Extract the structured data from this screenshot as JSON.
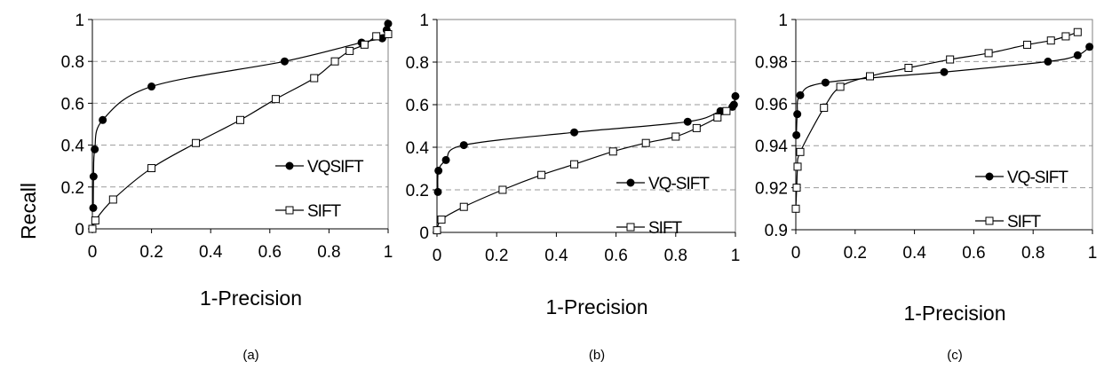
{
  "figure": {
    "ylabel": "Recall"
  },
  "chart_data": [
    {
      "type": "line",
      "caption": "(a)",
      "xlabel": "1-Precision",
      "ylabel": "Recall",
      "xlim": [
        0,
        1
      ],
      "ylim": [
        0,
        1
      ],
      "xticks": [
        "0",
        "0.2",
        "0.4",
        "0.6",
        "0.8",
        "1"
      ],
      "yticks": [
        "0",
        "0.2",
        "0.4",
        "0.6",
        "0.8",
        "1"
      ],
      "grid": "horizontal dashed",
      "legend_position": "lower-right",
      "series": [
        {
          "name": "VQSIFT",
          "marker": "filled-circle",
          "color": "#000000",
          "points": [
            [
              0.003,
              0.1
            ],
            [
              0.004,
              0.25
            ],
            [
              0.008,
              0.38
            ],
            [
              0.035,
              0.52
            ],
            [
              0.2,
              0.68
            ],
            [
              0.65,
              0.8
            ],
            [
              0.91,
              0.89
            ],
            [
              0.98,
              0.91
            ],
            [
              0.995,
              0.95
            ],
            [
              1.0,
              0.98
            ]
          ]
        },
        {
          "name": "SIFT",
          "marker": "open-square",
          "color": "#000000",
          "points": [
            [
              0.0,
              0.0
            ],
            [
              0.01,
              0.04
            ],
            [
              0.07,
              0.14
            ],
            [
              0.2,
              0.29
            ],
            [
              0.35,
              0.41
            ],
            [
              0.5,
              0.52
            ],
            [
              0.62,
              0.62
            ],
            [
              0.75,
              0.72
            ],
            [
              0.82,
              0.8
            ],
            [
              0.87,
              0.85
            ],
            [
              0.92,
              0.88
            ],
            [
              0.96,
              0.92
            ],
            [
              1.0,
              0.93
            ]
          ]
        }
      ]
    },
    {
      "type": "line",
      "caption": "(b)",
      "xlabel": "1-Precision",
      "ylabel": "",
      "xlim": [
        0,
        1
      ],
      "ylim": [
        0,
        1
      ],
      "xticks": [
        "0",
        "0.2",
        "0.4",
        "0.6",
        "0.8",
        "1"
      ],
      "yticks": [
        "0",
        "0.2",
        "0.4",
        "0.6",
        "0.8",
        "1"
      ],
      "grid": "horizontal dashed",
      "legend_position": "lower-right",
      "series": [
        {
          "name": "VQ-SIFT",
          "marker": "filled-circle",
          "color": "#000000",
          "points": [
            [
              0.003,
              0.19
            ],
            [
              0.005,
              0.29
            ],
            [
              0.03,
              0.34
            ],
            [
              0.09,
              0.41
            ],
            [
              0.46,
              0.47
            ],
            [
              0.84,
              0.52
            ],
            [
              0.95,
              0.57
            ],
            [
              0.99,
              0.59
            ],
            [
              0.995,
              0.6
            ],
            [
              1.0,
              0.64
            ]
          ]
        },
        {
          "name": "SIFT",
          "marker": "open-square",
          "color": "#000000",
          "points": [
            [
              0.0,
              0.01
            ],
            [
              0.015,
              0.06
            ],
            [
              0.09,
              0.12
            ],
            [
              0.22,
              0.2
            ],
            [
              0.35,
              0.27
            ],
            [
              0.46,
              0.32
            ],
            [
              0.59,
              0.38
            ],
            [
              0.7,
              0.42
            ],
            [
              0.8,
              0.45
            ],
            [
              0.87,
              0.49
            ],
            [
              0.94,
              0.54
            ],
            [
              0.97,
              0.57
            ]
          ]
        }
      ]
    },
    {
      "type": "line",
      "caption": "(c)",
      "xlabel": "1-Precision",
      "ylabel": "",
      "xlim": [
        0,
        1
      ],
      "ylim": [
        0.9,
        1
      ],
      "xticks": [
        "0",
        "0.2",
        "0.4",
        "0.6",
        "0.8",
        "1"
      ],
      "yticks": [
        "0.9",
        "0.92",
        "0.94",
        "0.96",
        "0.98",
        "1"
      ],
      "grid": "horizontal dashed",
      "legend_position": "lower-right",
      "series": [
        {
          "name": "VQ-SIFT",
          "marker": "filled-circle",
          "color": "#000000",
          "points": [
            [
              0.002,
              0.945
            ],
            [
              0.005,
              0.955
            ],
            [
              0.015,
              0.964
            ],
            [
              0.1,
              0.97
            ],
            [
              0.5,
              0.975
            ],
            [
              0.85,
              0.98
            ],
            [
              0.95,
              0.983
            ],
            [
              0.99,
              0.987
            ]
          ]
        },
        {
          "name": "SIFT",
          "marker": "open-square",
          "color": "#000000",
          "points": [
            [
              0.0,
              0.91
            ],
            [
              0.003,
              0.92
            ],
            [
              0.006,
              0.93
            ],
            [
              0.015,
              0.937
            ],
            [
              0.095,
              0.958
            ],
            [
              0.15,
              0.968
            ],
            [
              0.25,
              0.973
            ],
            [
              0.38,
              0.977
            ],
            [
              0.52,
              0.981
            ],
            [
              0.65,
              0.984
            ],
            [
              0.78,
              0.988
            ],
            [
              0.86,
              0.99
            ],
            [
              0.91,
              0.992
            ],
            [
              0.95,
              0.994
            ]
          ]
        }
      ]
    }
  ]
}
